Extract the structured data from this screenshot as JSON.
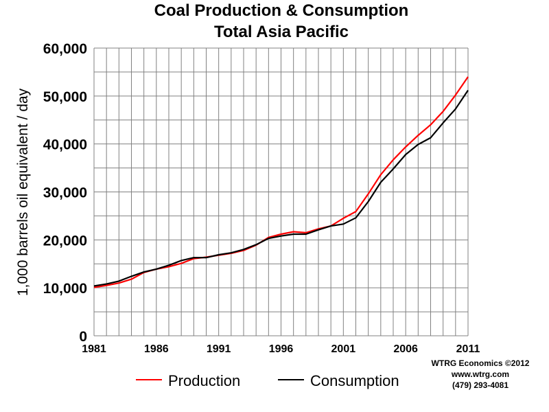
{
  "chart_data": {
    "type": "line",
    "title": [
      "Coal Production & Consumption",
      "Total Asia Pacific"
    ],
    "ylabel": "1,000 barrels oil equivalent / day",
    "xlabel": "",
    "xlim": [
      1981,
      2011
    ],
    "ylim": [
      0,
      60000
    ],
    "x_tick_labels": [
      "1981",
      "1986",
      "1991",
      "1996",
      "2001",
      "2006",
      "2011"
    ],
    "y_tick_labels": [
      "0",
      "10,000",
      "20,000",
      "30,000",
      "40,000",
      "50,000",
      "60,000"
    ],
    "grid": true,
    "legend_position": "bottom",
    "x": [
      1981,
      1982,
      1983,
      1984,
      1985,
      1986,
      1987,
      1988,
      1989,
      1990,
      1991,
      1992,
      1993,
      1994,
      1995,
      1996,
      1997,
      1998,
      1999,
      2000,
      2001,
      2002,
      2003,
      2004,
      2005,
      2006,
      2007,
      2008,
      2009,
      2010,
      2011
    ],
    "series": [
      {
        "name": "Production",
        "color": "#ff0000",
        "values": [
          10100,
          10500,
          11000,
          11800,
          13200,
          13900,
          14400,
          15100,
          16100,
          16400,
          16800,
          17200,
          17800,
          18900,
          20500,
          21200,
          21700,
          21500,
          22300,
          22900,
          24500,
          25900,
          29600,
          33600,
          36700,
          39400,
          41800,
          44000,
          46800,
          50200,
          54000
        ]
      },
      {
        "name": "Consumption",
        "color": "#000000",
        "values": [
          10400,
          10800,
          11400,
          12400,
          13300,
          13900,
          14700,
          15700,
          16300,
          16300,
          16900,
          17300,
          18000,
          19000,
          20300,
          20800,
          21200,
          21200,
          22100,
          22900,
          23300,
          24600,
          28000,
          32000,
          34800,
          37800,
          39900,
          41300,
          44400,
          47300,
          51200
        ]
      }
    ]
  },
  "credits": [
    "WTRG Economics ©2012",
    "www.wtrg.com",
    "(479) 293-4081"
  ]
}
